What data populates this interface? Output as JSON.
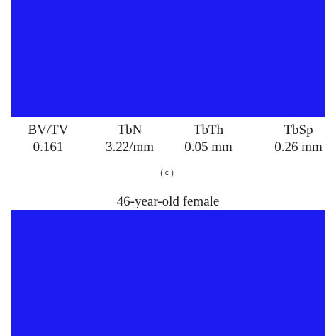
{
  "figure": {
    "metrics": [
      {
        "name": "BV/TV",
        "value": "0.161"
      },
      {
        "name": "TbN",
        "value": "3.22/mm"
      },
      {
        "name": "TbTh",
        "value": "0.05 mm"
      },
      {
        "name": "TbSp",
        "value": "0.26 mm"
      }
    ],
    "panel_label": "(c)",
    "next_panel_title": "46-year-old female"
  }
}
